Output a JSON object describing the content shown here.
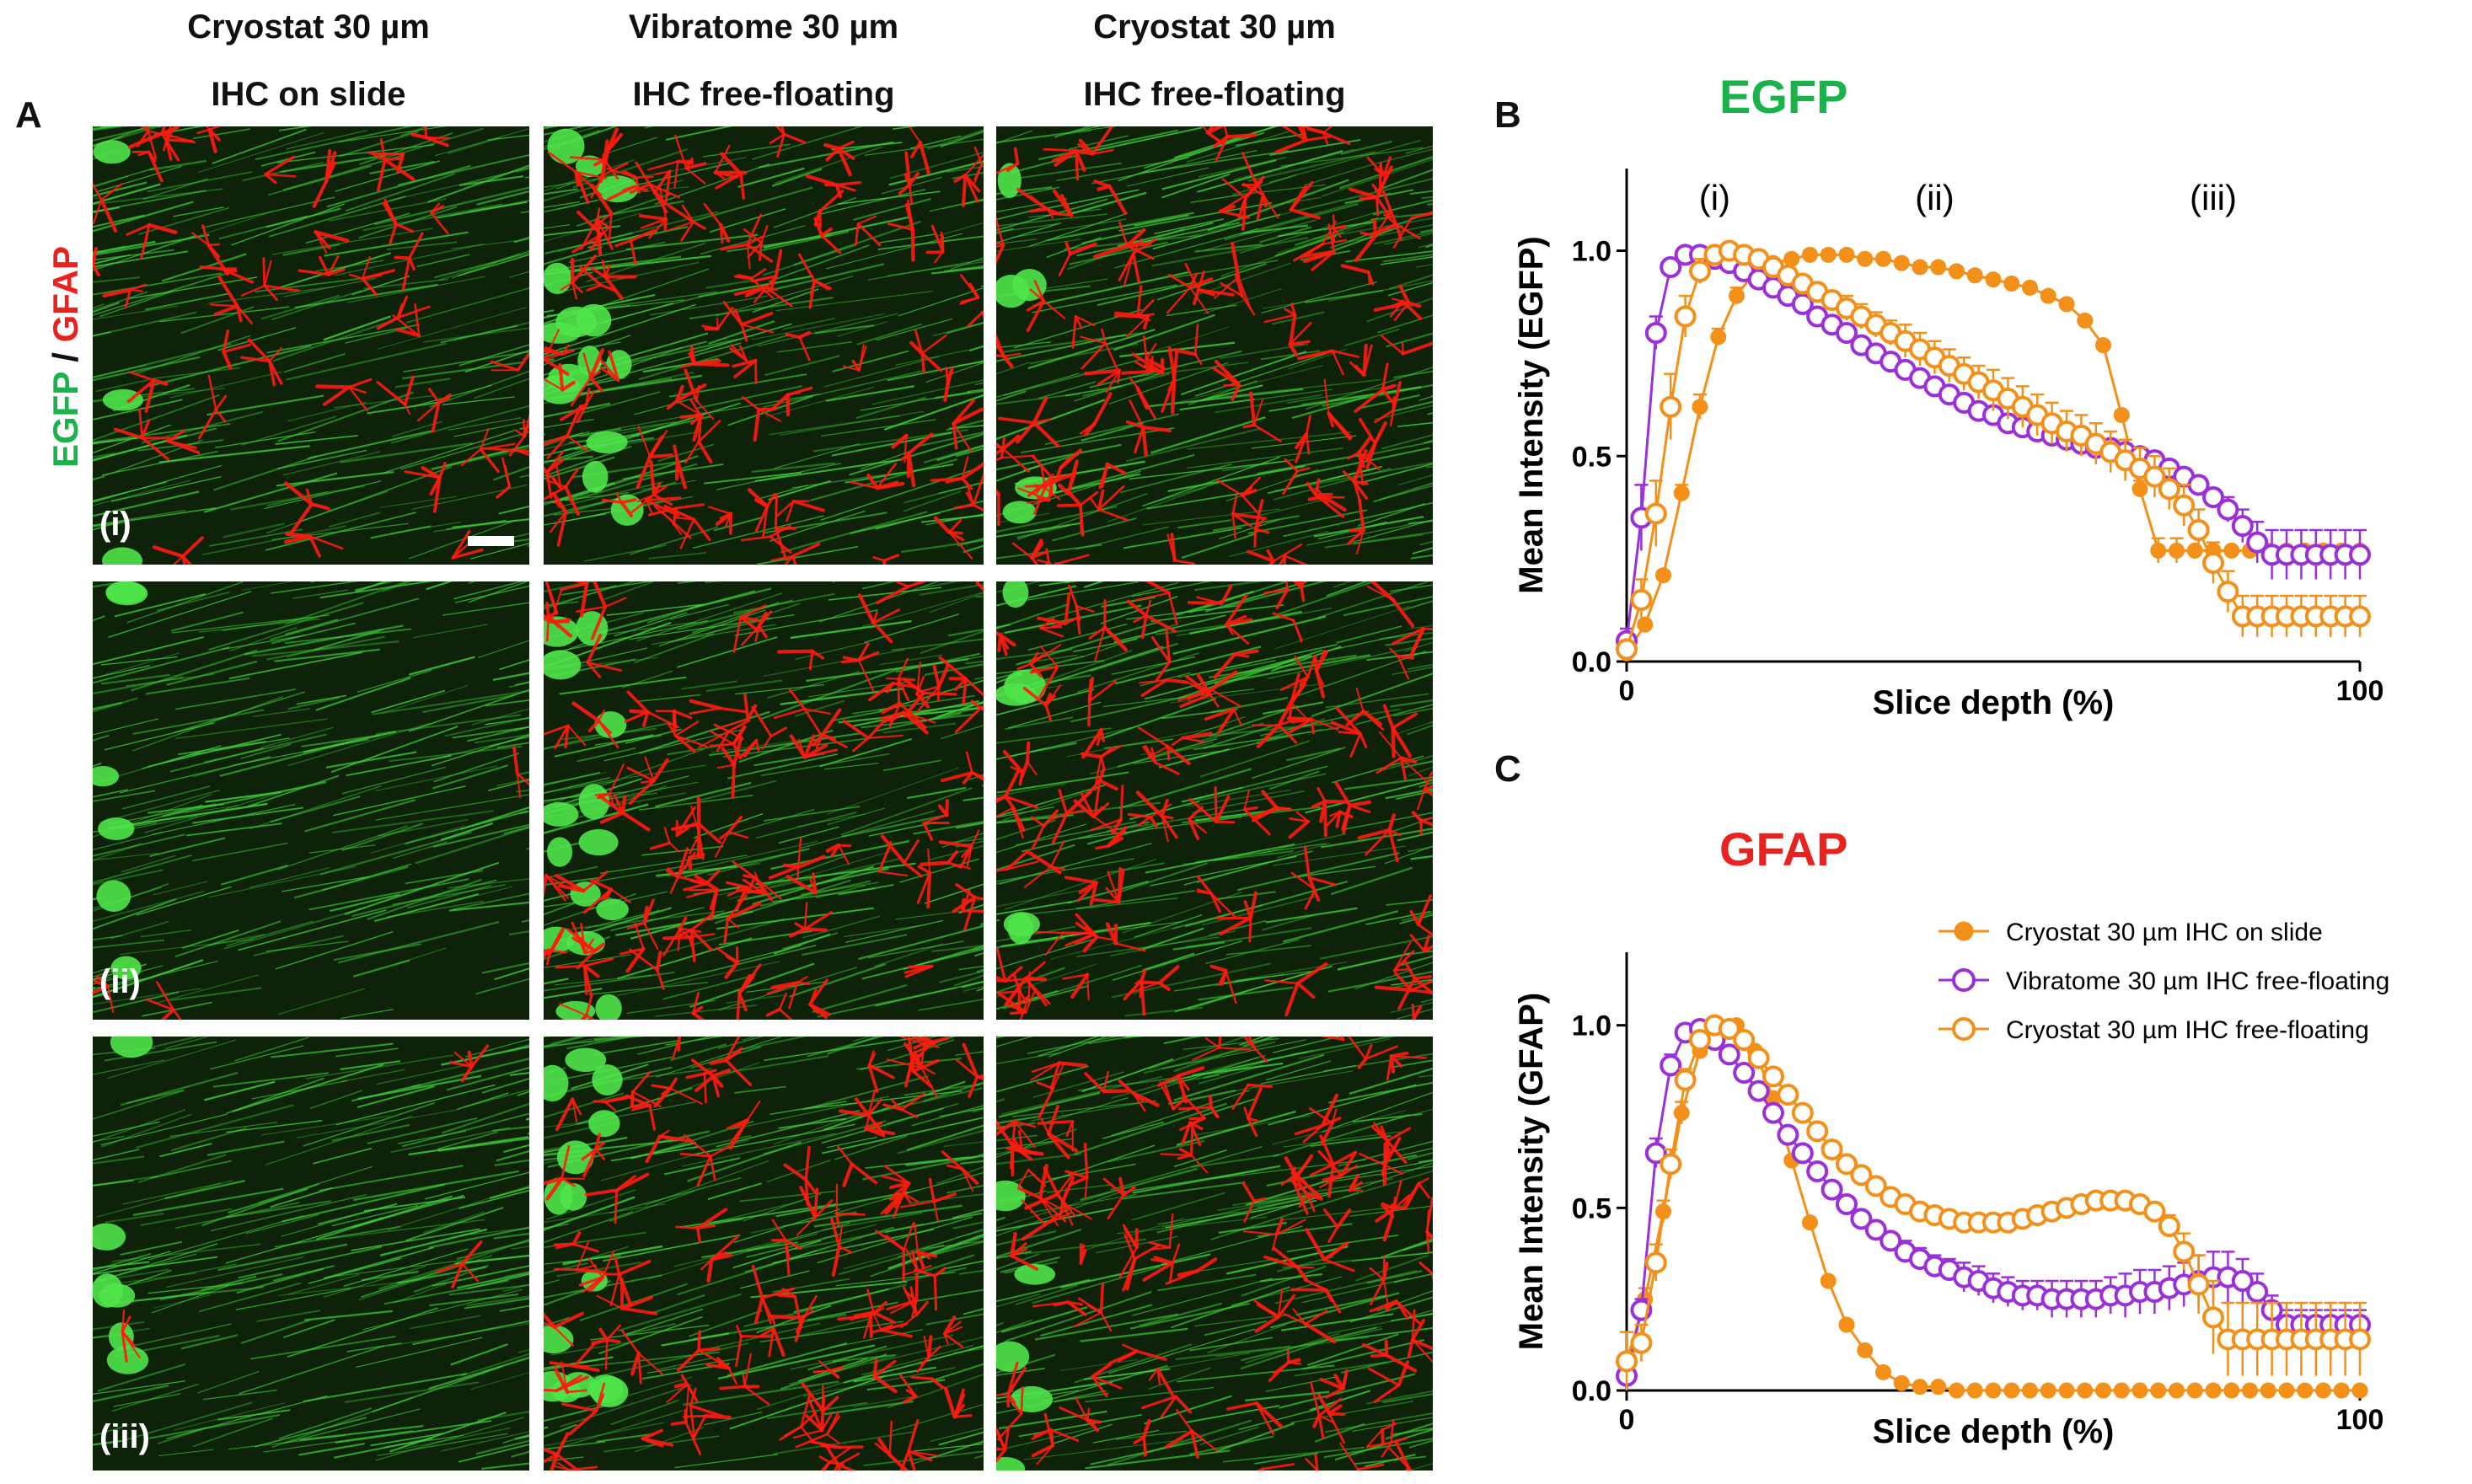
{
  "figure": {
    "panel_letters": {
      "a": "A",
      "b": "B",
      "c": "C"
    },
    "columns": [
      {
        "line1": "Cryostat 30 µm",
        "line2": "IHC on slide"
      },
      {
        "line1": "Vibratome 30 µm",
        "line2": "IHC free-floating"
      },
      {
        "line1": "Cryostat 30 µm",
        "line2": "IHC free-floating"
      }
    ],
    "rows": [
      "(i)",
      "(ii)",
      "(iii)"
    ],
    "stain_label": {
      "egfp": "EGFP",
      "slash": " / ",
      "gfap": "GFAP"
    },
    "colors": {
      "egfp_green": "#19b24b",
      "gfap_red": "#e8231f",
      "cryo_slide": "#f39019",
      "vibratome": "#9b30d9",
      "cryo_free": "#f39019",
      "tissue_green": "#3fcf3a",
      "tissue_red": "#ff1a10"
    }
  },
  "chart_data": [
    {
      "type": "line",
      "title": "EGFP",
      "xlabel": "Slice depth  (%)",
      "ylabel": "Mean Intensity (EGFP)",
      "xlim": [
        0,
        100
      ],
      "ylim": [
        0,
        1.2
      ],
      "xticks": [
        "0",
        "100"
      ],
      "yticks": [
        "0.0",
        "0.5",
        "1.0"
      ],
      "annotations": [
        {
          "text": "(i)",
          "x": 12
        },
        {
          "text": "(ii)",
          "x": 42
        },
        {
          "text": "(iii)",
          "x": 80
        }
      ],
      "series": [
        {
          "name": "Cryostat 30 µm IHC on slide",
          "marker": "filled",
          "color": "#f39019",
          "x": [
            0,
            2.5,
            5,
            7.5,
            10,
            12.5,
            15,
            17.5,
            20,
            22.5,
            25,
            27.5,
            30,
            32.5,
            35,
            37.5,
            40,
            42.5,
            45,
            47.5,
            50,
            52.5,
            55,
            57.5,
            60,
            62.5,
            65,
            67.5,
            70,
            72.5,
            75,
            77.5,
            80,
            82.5,
            85,
            87.5,
            90,
            92.5,
            95,
            97.5,
            100
          ],
          "y": [
            0.02,
            0.09,
            0.21,
            0.41,
            0.62,
            0.79,
            0.89,
            0.95,
            0.97,
            0.98,
            0.99,
            0.99,
            0.99,
            0.98,
            0.98,
            0.97,
            0.96,
            0.96,
            0.95,
            0.94,
            0.93,
            0.92,
            0.91,
            0.89,
            0.87,
            0.83,
            0.77,
            0.6,
            0.42,
            0.27,
            0.27,
            0.27,
            0.27,
            0.27,
            0.27,
            0.27,
            0.27,
            0.27,
            0.27,
            0.27,
            0.27
          ],
          "error": [
            0,
            0,
            0.01,
            0.02,
            0.03,
            0.02,
            0.02,
            0.01,
            0.01,
            0.01,
            0.01,
            0.01,
            0.01,
            0.01,
            0.01,
            0.01,
            0.01,
            0.01,
            0.01,
            0.01,
            0.01,
            0.01,
            0.01,
            0.01,
            0.01,
            0.01,
            0.01,
            0.01,
            0.02,
            0.03,
            0.03,
            0,
            0,
            0,
            0,
            0,
            0,
            0,
            0,
            0,
            0
          ]
        },
        {
          "name": "Vibratome 30 µm IHC free-floating",
          "marker": "open",
          "color": "#9b30d9",
          "x": [
            0,
            2,
            4,
            6,
            8,
            10,
            12,
            14,
            16,
            18,
            20,
            22,
            24,
            26,
            28,
            30,
            32,
            34,
            36,
            38,
            40,
            42,
            44,
            46,
            48,
            50,
            52,
            54,
            56,
            58,
            60,
            62,
            64,
            66,
            68,
            70,
            72,
            74,
            76,
            78,
            80,
            82,
            84,
            86,
            88,
            90,
            92,
            94,
            96,
            98,
            100
          ],
          "y": [
            0.05,
            0.35,
            0.8,
            0.96,
            0.99,
            0.99,
            0.98,
            0.97,
            0.95,
            0.93,
            0.91,
            0.89,
            0.87,
            0.84,
            0.82,
            0.8,
            0.77,
            0.75,
            0.73,
            0.71,
            0.69,
            0.67,
            0.65,
            0.63,
            0.61,
            0.6,
            0.58,
            0.57,
            0.56,
            0.55,
            0.54,
            0.53,
            0.52,
            0.52,
            0.51,
            0.5,
            0.49,
            0.47,
            0.45,
            0.43,
            0.4,
            0.37,
            0.33,
            0.29,
            0.26,
            0.26,
            0.26,
            0.26,
            0.26,
            0.26,
            0.26
          ],
          "error": [
            0.03,
            0.08,
            0.04,
            0.02,
            0.01,
            0.01,
            0.01,
            0.01,
            0.01,
            0.01,
            0.01,
            0.01,
            0.01,
            0.01,
            0.01,
            0.01,
            0.01,
            0.01,
            0.01,
            0.01,
            0.01,
            0.01,
            0.01,
            0.01,
            0.01,
            0.01,
            0.01,
            0.01,
            0.01,
            0.01,
            0.01,
            0.01,
            0.02,
            0.02,
            0.02,
            0.02,
            0.02,
            0.02,
            0.02,
            0.02,
            0.02,
            0.03,
            0.04,
            0.05,
            0.06,
            0.06,
            0.06,
            0.06,
            0.06,
            0.06,
            0.06
          ]
        },
        {
          "name": "Cryostat 30 µm IHC free-floating",
          "marker": "open",
          "color": "#f39019",
          "x": [
            0,
            2,
            4,
            6,
            8,
            10,
            12,
            14,
            16,
            18,
            20,
            22,
            24,
            26,
            28,
            30,
            32,
            34,
            36,
            38,
            40,
            42,
            44,
            46,
            48,
            50,
            52,
            54,
            56,
            58,
            60,
            62,
            64,
            66,
            68,
            70,
            72,
            74,
            76,
            78,
            80,
            82,
            84,
            86,
            88,
            90,
            92,
            94,
            96,
            98,
            100
          ],
          "y": [
            0.03,
            0.15,
            0.36,
            0.62,
            0.84,
            0.95,
            0.99,
            1.0,
            0.99,
            0.98,
            0.96,
            0.94,
            0.92,
            0.9,
            0.88,
            0.86,
            0.84,
            0.82,
            0.8,
            0.78,
            0.76,
            0.74,
            0.72,
            0.7,
            0.68,
            0.66,
            0.64,
            0.62,
            0.6,
            0.58,
            0.56,
            0.55,
            0.53,
            0.51,
            0.49,
            0.47,
            0.45,
            0.42,
            0.38,
            0.32,
            0.24,
            0.17,
            0.11,
            0.11,
            0.11,
            0.11,
            0.11,
            0.11,
            0.11,
            0.11,
            0.11
          ],
          "error": [
            0.02,
            0.05,
            0.08,
            0.08,
            0.05,
            0.03,
            0.01,
            0.01,
            0.01,
            0.02,
            0.02,
            0.02,
            0.02,
            0.02,
            0.02,
            0.03,
            0.03,
            0.03,
            0.03,
            0.04,
            0.04,
            0.04,
            0.04,
            0.04,
            0.04,
            0.05,
            0.05,
            0.05,
            0.05,
            0.05,
            0.05,
            0.05,
            0.05,
            0.05,
            0.05,
            0.05,
            0.05,
            0.05,
            0.05,
            0.05,
            0.05,
            0.05,
            0.05,
            0.05,
            0.05,
            0.05,
            0.05,
            0.05,
            0.05,
            0.05,
            0.05
          ]
        }
      ]
    },
    {
      "type": "line",
      "title": "GFAP",
      "xlabel": "Slice depth  (%)",
      "ylabel": "Mean Intensity (GFAP)",
      "xlim": [
        0,
        100
      ],
      "ylim": [
        0,
        1.2
      ],
      "xticks": [
        "0",
        "100"
      ],
      "yticks": [
        "0.0",
        "0.5",
        "1.0"
      ],
      "legend": "top-right",
      "series": [
        {
          "name": "Cryostat 30 µm IHC on slide",
          "marker": "filled",
          "color": "#f39019",
          "x": [
            0,
            2.5,
            5,
            7.5,
            10,
            12.5,
            15,
            17.5,
            20,
            22.5,
            25,
            27.5,
            30,
            32.5,
            35,
            37.5,
            40,
            42.5,
            45,
            47.5,
            50,
            52.5,
            55,
            57.5,
            60,
            62.5,
            65,
            67.5,
            70,
            72.5,
            75,
            77.5,
            80,
            82.5,
            85,
            87.5,
            90,
            92.5,
            95,
            97.5,
            100
          ],
          "y": [
            0.08,
            0.25,
            0.49,
            0.76,
            0.93,
            0.99,
            1.0,
            0.93,
            0.8,
            0.63,
            0.46,
            0.3,
            0.18,
            0.11,
            0.05,
            0.02,
            0.01,
            0.01,
            0.0,
            0.0,
            0.0,
            0.0,
            0.0,
            0.0,
            0.0,
            0.0,
            0.0,
            0.0,
            0.0,
            0.0,
            0.0,
            0.0,
            0.0,
            0.0,
            0.0,
            0.0,
            0.0,
            0.0,
            0.0,
            0.0,
            0.0
          ],
          "error": [
            0.02,
            0.03,
            0.03,
            0.03,
            0.02,
            0.01,
            0.01,
            0.01,
            0.01,
            0.01,
            0.01,
            0.01,
            0.01,
            0.01,
            0.01,
            0.01,
            0,
            0,
            0,
            0,
            0,
            0,
            0,
            0,
            0,
            0,
            0,
            0,
            0,
            0,
            0,
            0,
            0,
            0,
            0,
            0,
            0,
            0,
            0,
            0,
            0
          ]
        },
        {
          "name": "Vibratome 30 µm IHC free-floating",
          "marker": "open",
          "color": "#9b30d9",
          "x": [
            0,
            2,
            4,
            6,
            8,
            10,
            12,
            14,
            16,
            18,
            20,
            22,
            24,
            26,
            28,
            30,
            32,
            34,
            36,
            38,
            40,
            42,
            44,
            46,
            48,
            50,
            52,
            54,
            56,
            58,
            60,
            62,
            64,
            66,
            68,
            70,
            72,
            74,
            76,
            78,
            80,
            82,
            84,
            86,
            88,
            90,
            92,
            94,
            96,
            98,
            100
          ],
          "y": [
            0.04,
            0.22,
            0.65,
            0.89,
            0.98,
            0.99,
            0.96,
            0.92,
            0.87,
            0.82,
            0.76,
            0.7,
            0.65,
            0.6,
            0.55,
            0.51,
            0.47,
            0.44,
            0.41,
            0.38,
            0.36,
            0.34,
            0.33,
            0.31,
            0.3,
            0.28,
            0.27,
            0.26,
            0.26,
            0.25,
            0.25,
            0.25,
            0.25,
            0.26,
            0.26,
            0.27,
            0.27,
            0.28,
            0.29,
            0.3,
            0.31,
            0.31,
            0.3,
            0.27,
            0.22,
            0.18,
            0.18,
            0.18,
            0.18,
            0.18,
            0.18
          ],
          "error": [
            0.01,
            0.03,
            0.04,
            0.03,
            0.02,
            0.01,
            0.01,
            0.01,
            0.01,
            0.01,
            0.01,
            0.01,
            0.01,
            0.01,
            0.01,
            0.02,
            0.02,
            0.02,
            0.02,
            0.03,
            0.03,
            0.03,
            0.03,
            0.04,
            0.04,
            0.04,
            0.04,
            0.04,
            0.04,
            0.05,
            0.05,
            0.05,
            0.05,
            0.05,
            0.06,
            0.06,
            0.06,
            0.06,
            0.06,
            0.07,
            0.07,
            0.07,
            0.06,
            0.05,
            0.04,
            0.04,
            0.04,
            0.04,
            0.04,
            0.04,
            0.04
          ]
        },
        {
          "name": "Cryostat 30 µm IHC free-floating",
          "marker": "open",
          "color": "#f39019",
          "x": [
            0,
            2,
            4,
            6,
            8,
            10,
            12,
            14,
            16,
            18,
            20,
            22,
            24,
            26,
            28,
            30,
            32,
            34,
            36,
            38,
            40,
            42,
            44,
            46,
            48,
            50,
            52,
            54,
            56,
            58,
            60,
            62,
            64,
            66,
            68,
            70,
            72,
            74,
            76,
            78,
            80,
            82,
            84,
            86,
            88,
            90,
            92,
            94,
            96,
            98,
            100
          ],
          "y": [
            0.08,
            0.13,
            0.35,
            0.62,
            0.85,
            0.96,
            1.0,
            0.99,
            0.96,
            0.91,
            0.86,
            0.81,
            0.76,
            0.71,
            0.66,
            0.62,
            0.59,
            0.56,
            0.53,
            0.51,
            0.49,
            0.48,
            0.47,
            0.46,
            0.46,
            0.46,
            0.46,
            0.47,
            0.48,
            0.49,
            0.5,
            0.51,
            0.52,
            0.52,
            0.52,
            0.51,
            0.49,
            0.45,
            0.38,
            0.29,
            0.2,
            0.14,
            0.14,
            0.14,
            0.14,
            0.14,
            0.14,
            0.14,
            0.14,
            0.14,
            0.14
          ],
          "error": [
            0.08,
            0.05,
            0.05,
            0.04,
            0.03,
            0.02,
            0.01,
            0.01,
            0.01,
            0.01,
            0.01,
            0.01,
            0.01,
            0.01,
            0.01,
            0.01,
            0.01,
            0.01,
            0.01,
            0.01,
            0.01,
            0.01,
            0.01,
            0.01,
            0.01,
            0.01,
            0.01,
            0.01,
            0.01,
            0.01,
            0.01,
            0.01,
            0.01,
            0.01,
            0.01,
            0.01,
            0.02,
            0.03,
            0.05,
            0.08,
            0.1,
            0.1,
            0.1,
            0.1,
            0.1,
            0.1,
            0.1,
            0.1,
            0.1,
            0.1,
            0.1
          ]
        }
      ]
    }
  ]
}
